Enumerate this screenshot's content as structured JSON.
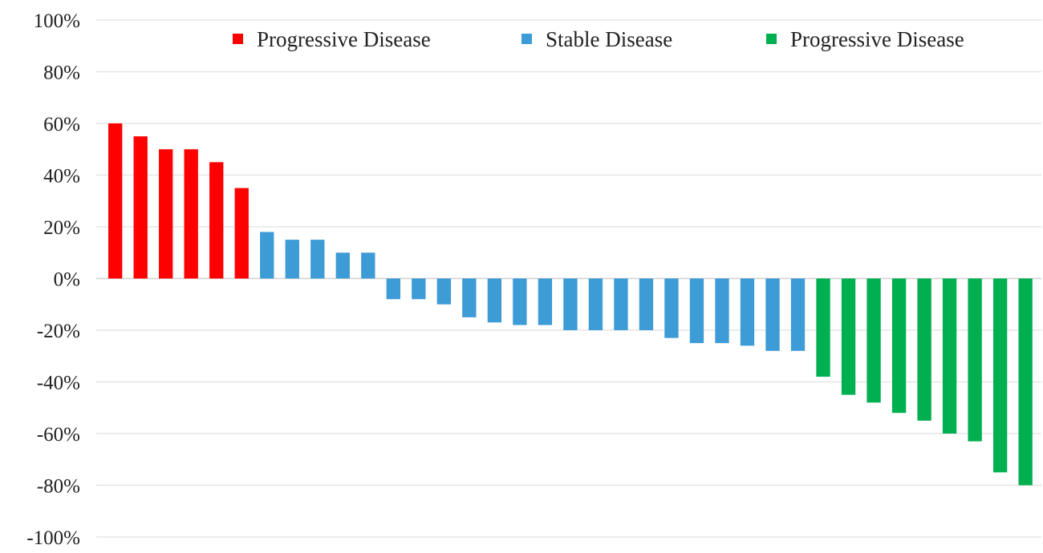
{
  "chart_data": {
    "type": "bar",
    "title": "",
    "xlabel": "",
    "ylabel": "",
    "ylim": [
      -100,
      100
    ],
    "y_ticks": [
      100,
      80,
      60,
      40,
      20,
      0,
      -20,
      -40,
      -60,
      -80,
      -100
    ],
    "y_tick_labels": [
      "100%",
      "80%",
      "60%",
      "40%",
      "20%",
      "0%",
      "-20%",
      "-40%",
      "-60%",
      "-80%",
      "-100%"
    ],
    "grid": true,
    "legend_position": "top",
    "series": [
      {
        "name": "Progressive Disease",
        "color": "#ff0000",
        "values": [
          60,
          55,
          50,
          50,
          45,
          35
        ]
      },
      {
        "name": "Stable Disease",
        "color": "#3d9bd6",
        "values": [
          18,
          15,
          15,
          10,
          10,
          -8,
          -8,
          -10,
          -15,
          -17,
          -18,
          -18,
          -20,
          -20,
          -20,
          -20,
          -23,
          -25,
          -25,
          -26,
          -28,
          -28
        ]
      },
      {
        "name": "Progressive Disease",
        "color": "#00b050",
        "values": [
          -38,
          -45,
          -48,
          -52,
          -55,
          -60,
          -63,
          -75,
          -80
        ]
      }
    ]
  }
}
